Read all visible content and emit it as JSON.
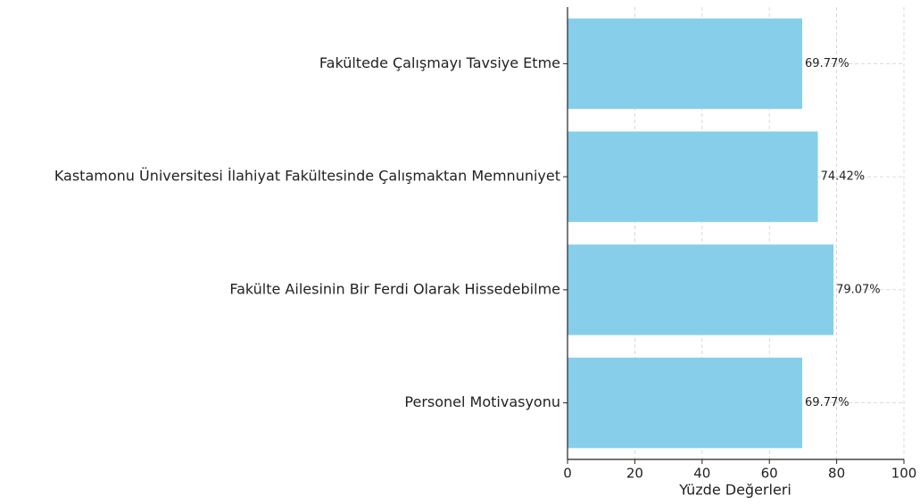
{
  "chart_data": {
    "type": "barh",
    "categories": [
      "Fakültede Çalışmayı Tavsiye Etme",
      "Kastamonu Üniversitesi İlahiyat Fakültesinde Çalışmaktan Memnuniyet",
      "Fakülte Ailesinin Bir Ferdi Olarak Hissedebilme",
      "Personel Motivasyonu"
    ],
    "values": [
      69.77,
      74.42,
      79.07,
      69.77
    ],
    "value_labels": [
      "69.77%",
      "74.42%",
      "79.07%",
      "69.77%"
    ],
    "color": "#87ceeb",
    "xlabel": "Yüzde Değerleri",
    "xlim": [
      0,
      100
    ],
    "xticks": [
      0,
      20,
      40,
      60,
      80,
      100
    ],
    "grid": true
  }
}
